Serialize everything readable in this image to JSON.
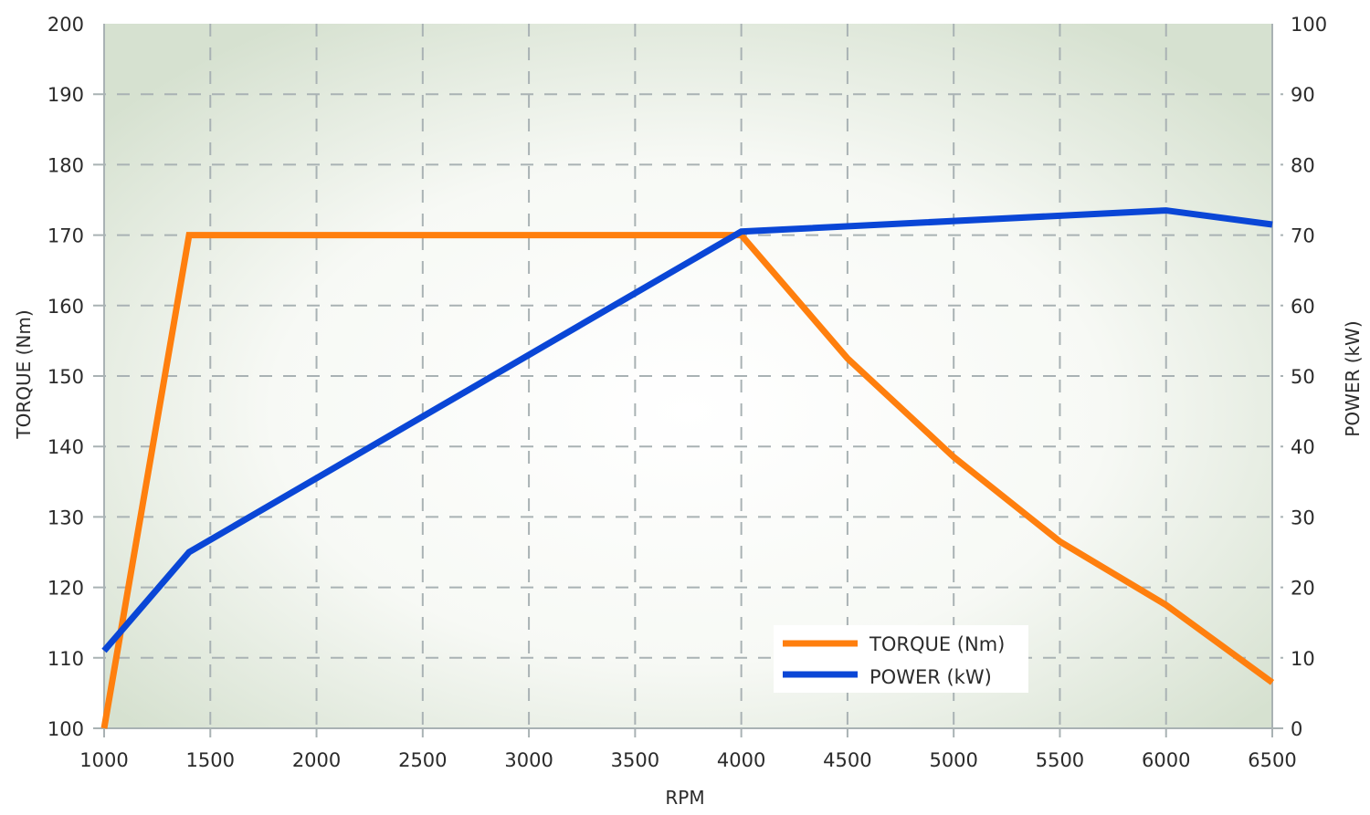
{
  "chart_data": {
    "type": "line",
    "title": "",
    "xlabel": "RPM",
    "ylabel": "TORQUE (Nm)",
    "y2label": "POWER (kW)",
    "xlim": [
      1000,
      6500
    ],
    "ylim": [
      100,
      200
    ],
    "y2lim": [
      0,
      100
    ],
    "xticks": [
      1000,
      1500,
      2000,
      2500,
      3000,
      3500,
      4000,
      4500,
      5000,
      5500,
      6000,
      6500
    ],
    "yticks": [
      100,
      110,
      120,
      130,
      140,
      150,
      160,
      170,
      180,
      190,
      200
    ],
    "y2ticks": [
      0,
      10,
      20,
      30,
      40,
      50,
      60,
      70,
      80,
      90,
      100
    ],
    "grid": true,
    "legend_position": "bottom-right",
    "series": [
      {
        "name": "TORQUE (Nm)",
        "axis": "left",
        "color": "#ff7f0e",
        "x": [
          1000,
          1400,
          4000,
          4500,
          5000,
          5500,
          6000,
          6500
        ],
        "y": [
          100,
          170,
          170,
          152.5,
          138.5,
          126.5,
          117.5,
          106.5
        ]
      },
      {
        "name": "POWER (kW)",
        "axis": "right",
        "color": "#0a46d6",
        "x": [
          1000,
          1400,
          4000,
          6000,
          6500
        ],
        "y": [
          11,
          25,
          70.5,
          73.5,
          71.5
        ]
      }
    ]
  }
}
